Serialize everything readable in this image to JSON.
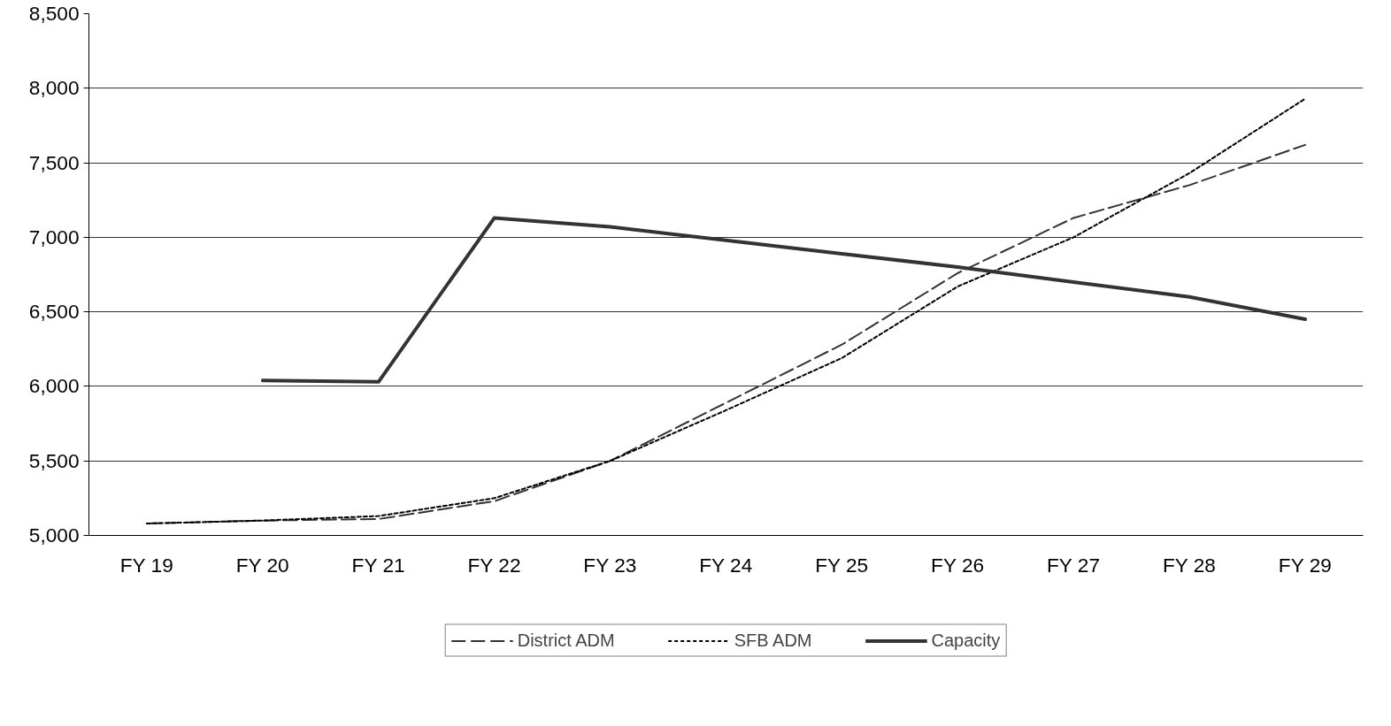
{
  "chart_data": {
    "type": "line",
    "categories": [
      "FY 19",
      "FY 20",
      "FY 21",
      "FY 22",
      "FY 23",
      "FY 24",
      "FY 25",
      "FY 26",
      "FY 27",
      "FY 28",
      "FY 29"
    ],
    "series": [
      {
        "name": "District ADM",
        "color": "#333333",
        "line_style": "dashed",
        "values": [
          5080,
          5100,
          5110,
          5230,
          5500,
          5890,
          6280,
          6760,
          7130,
          7350,
          7620
        ]
      },
      {
        "name": "SFB ADM",
        "color": "#000000",
        "line_style": "dotted",
        "values": [
          5080,
          5100,
          5130,
          5250,
          5500,
          5840,
          6190,
          6670,
          7000,
          7430,
          7930
        ]
      },
      {
        "name": "Capacity",
        "color": "#333333",
        "line_style": "solid",
        "values": [
          null,
          6040,
          6030,
          7130,
          7070,
          6980,
          6890,
          6800,
          6700,
          6600,
          6450
        ]
      }
    ],
    "ylim": [
      5000,
      8500
    ],
    "yticks": [
      {
        "value": 5000,
        "label": "5,000"
      },
      {
        "value": 5500,
        "label": "5,500"
      },
      {
        "value": 6000,
        "label": "6,000"
      },
      {
        "value": 6500,
        "label": "6,500"
      },
      {
        "value": 7000,
        "label": "7,000"
      },
      {
        "value": 7500,
        "label": "7,500"
      },
      {
        "value": 8000,
        "label": "8,000"
      },
      {
        "value": 8500,
        "label": "8,500"
      }
    ],
    "grid": "y",
    "legend": "bottom",
    "marker": "none"
  }
}
